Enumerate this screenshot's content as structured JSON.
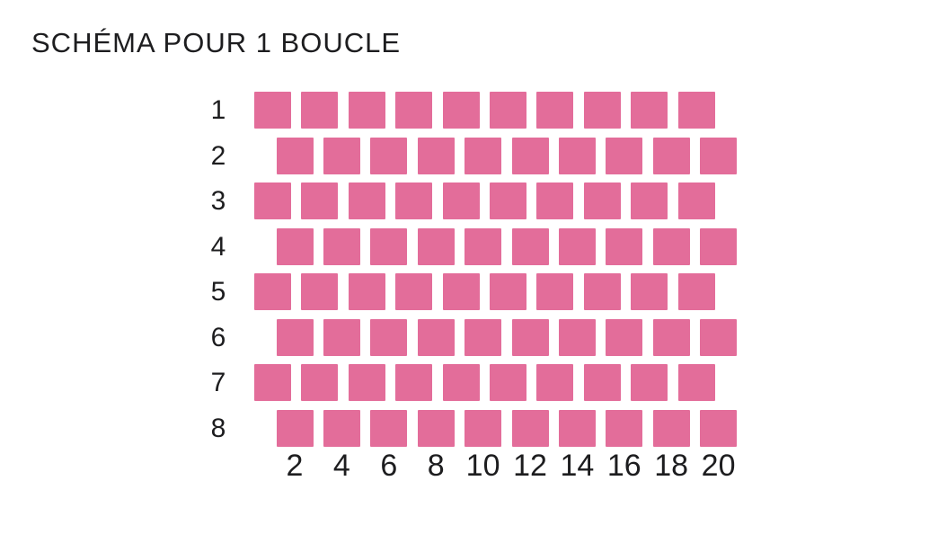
{
  "title": "SCHÉMA POUR 1 BOUCLE",
  "diagram": {
    "bead_color": "#E36D9A",
    "rows": [
      {
        "label": "1",
        "offset": false,
        "beads": 10
      },
      {
        "label": "2",
        "offset": true,
        "beads": 10
      },
      {
        "label": "3",
        "offset": false,
        "beads": 10
      },
      {
        "label": "4",
        "offset": true,
        "beads": 10
      },
      {
        "label": "5",
        "offset": false,
        "beads": 10
      },
      {
        "label": "6",
        "offset": true,
        "beads": 10
      },
      {
        "label": "7",
        "offset": false,
        "beads": 10
      },
      {
        "label": "8",
        "offset": true,
        "beads": 10
      }
    ],
    "col_labels": [
      "2",
      "4",
      "6",
      "8",
      "10",
      "12",
      "14",
      "16",
      "18",
      "20"
    ]
  }
}
